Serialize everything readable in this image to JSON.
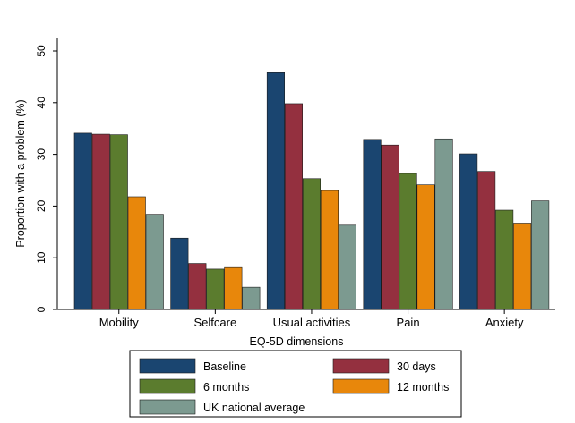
{
  "chart_data": {
    "type": "bar",
    "xlabel": "EQ-5D dimensions",
    "ylabel": "Proportion with a problem (%)",
    "ylim": [
      0,
      50
    ],
    "yticks": [
      0,
      10,
      20,
      30,
      40,
      50
    ],
    "grid": false,
    "legend_position": "bottom",
    "categories": [
      "Mobility",
      "Selfcare",
      "Usual activities",
      "Pain",
      "Anxiety"
    ],
    "series": [
      {
        "name": "Baseline",
        "color": "#1a4570",
        "values": [
          34.1,
          13.8,
          45.8,
          32.9,
          30.1
        ]
      },
      {
        "name": "30 days",
        "color": "#94303f",
        "values": [
          33.9,
          8.9,
          39.8,
          31.8,
          26.7
        ]
      },
      {
        "name": "6 months",
        "color": "#5b7c2e",
        "values": [
          33.8,
          7.8,
          25.3,
          26.3,
          19.2
        ]
      },
      {
        "name": "12 months",
        "color": "#e8870b",
        "values": [
          21.8,
          8.1,
          23.0,
          24.1,
          16.7
        ]
      },
      {
        "name": "UK national average",
        "color": "#7c9a90",
        "values": [
          18.4,
          4.3,
          16.3,
          33.0,
          21.0
        ]
      }
    ]
  }
}
